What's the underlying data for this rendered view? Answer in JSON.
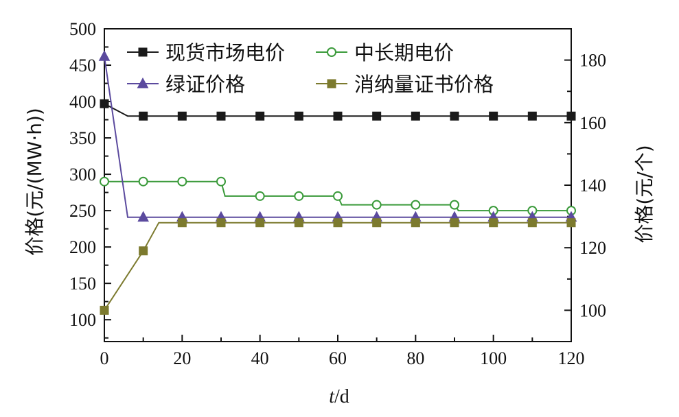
{
  "chart_data": {
    "type": "line",
    "xlabel_var": "t",
    "xlabel_unit": "/d",
    "ylabel_left": "价格(元/(MW·h))",
    "ylabel_right": "价格(元/个)",
    "xlim": [
      0,
      120
    ],
    "ylim_left": [
      70,
      500
    ],
    "ylim_right": [
      90,
      190
    ],
    "x_ticks": [
      0,
      20,
      40,
      60,
      80,
      100,
      120
    ],
    "y_left_ticks": [
      100,
      150,
      200,
      250,
      300,
      350,
      400,
      450,
      500
    ],
    "y_right_ticks": [
      100,
      120,
      140,
      160,
      180
    ],
    "grid": false,
    "legend_position": "top",
    "series": [
      {
        "name": "现货市场电价",
        "axis": "left",
        "color": "#1a1a1a",
        "marker": "square-filled",
        "line": [
          [
            0,
            397
          ],
          [
            6,
            380
          ],
          [
            120,
            380
          ]
        ],
        "markers": [
          [
            0,
            397
          ],
          [
            10,
            380
          ],
          [
            20,
            380
          ],
          [
            30,
            380
          ],
          [
            40,
            380
          ],
          [
            50,
            380
          ],
          [
            60,
            380
          ],
          [
            70,
            380
          ],
          [
            80,
            380
          ],
          [
            90,
            380
          ],
          [
            100,
            380
          ],
          [
            110,
            380
          ],
          [
            120,
            380
          ]
        ]
      },
      {
        "name": "中长期电价",
        "axis": "left",
        "color": "#3a9a3a",
        "marker": "circle-open",
        "line": [
          [
            0,
            290
          ],
          [
            30,
            290
          ],
          [
            31,
            270
          ],
          [
            60,
            270
          ],
          [
            61,
            258
          ],
          [
            90,
            258
          ],
          [
            91,
            250
          ],
          [
            120,
            250
          ]
        ],
        "markers": [
          [
            0,
            290
          ],
          [
            10,
            290
          ],
          [
            20,
            290
          ],
          [
            30,
            290
          ],
          [
            40,
            270
          ],
          [
            50,
            270
          ],
          [
            60,
            270
          ],
          [
            70,
            258
          ],
          [
            80,
            258
          ],
          [
            90,
            258
          ],
          [
            100,
            250
          ],
          [
            110,
            250
          ],
          [
            120,
            250
          ]
        ]
      },
      {
        "name": "绿证价格",
        "axis": "left",
        "color": "#5b4a9e",
        "marker": "triangle-filled",
        "line": [
          [
            0,
            462
          ],
          [
            6,
            241
          ],
          [
            120,
            241
          ]
        ],
        "markers": [
          [
            0,
            462
          ],
          [
            10,
            241
          ],
          [
            20,
            241
          ],
          [
            30,
            241
          ],
          [
            40,
            241
          ],
          [
            50,
            241
          ],
          [
            60,
            241
          ],
          [
            70,
            241
          ],
          [
            80,
            241
          ],
          [
            90,
            241
          ],
          [
            100,
            241
          ],
          [
            110,
            241
          ],
          [
            120,
            241
          ]
        ]
      },
      {
        "name": "消纳量证书价格",
        "axis": "right",
        "color": "#7c7a2e",
        "marker": "square-filled",
        "line": [
          [
            0,
            100
          ],
          [
            10,
            119
          ],
          [
            14,
            128
          ],
          [
            120,
            128
          ]
        ],
        "markers": [
          [
            0,
            100
          ],
          [
            10,
            119
          ],
          [
            20,
            128
          ],
          [
            30,
            128
          ],
          [
            40,
            128
          ],
          [
            50,
            128
          ],
          [
            60,
            128
          ],
          [
            70,
            128
          ],
          [
            80,
            128
          ],
          [
            90,
            128
          ],
          [
            100,
            128
          ],
          [
            110,
            128
          ],
          [
            120,
            128
          ]
        ]
      }
    ]
  }
}
